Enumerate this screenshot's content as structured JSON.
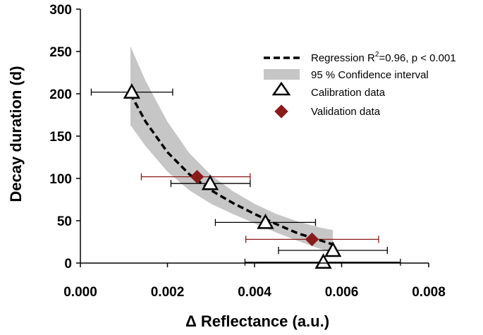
{
  "chart_data": {
    "type": "scatter",
    "xlabel": "Δ Reflectance (a.u.)",
    "ylabel": "Decay duration (d)",
    "xlim": [
      0.0,
      0.008
    ],
    "ylim": [
      0,
      300
    ],
    "x_ticks": [
      "0.000",
      "0.002",
      "0.004",
      "0.006",
      "0.008"
    ],
    "x_tick_values": [
      0.0,
      0.002,
      0.004,
      0.006,
      0.008
    ],
    "y_ticks": [
      "0",
      "50",
      "100",
      "150",
      "200",
      "250",
      "300"
    ],
    "y_tick_values": [
      0,
      50,
      100,
      150,
      200,
      250,
      300
    ],
    "grid": false,
    "legend_position": "top-right",
    "legend": {
      "regression_prefix": "Regression R",
      "regression_superscript": "2",
      "regression_suffix": "=0.96, p < 0.001",
      "confidence": "95 % Confidence interval",
      "calibration": "Calibration data",
      "validation": "Validation data"
    },
    "regression_curve": {
      "x": [
        0.00115,
        0.0015,
        0.002,
        0.0025,
        0.003,
        0.0035,
        0.004,
        0.0045,
        0.005,
        0.0055,
        0.0058
      ],
      "y": [
        200,
        167,
        131,
        105,
        86,
        71,
        58,
        46,
        35,
        27,
        22
      ]
    },
    "confidence_interval": {
      "x": [
        0.00115,
        0.0015,
        0.002,
        0.0025,
        0.003,
        0.0035,
        0.004,
        0.0045,
        0.005,
        0.0055,
        0.0058
      ],
      "upper": [
        256,
        215,
        167,
        130,
        104,
        85,
        70,
        58,
        49,
        42,
        39
      ],
      "lower": [
        163,
        138,
        108,
        86,
        70,
        58,
        47,
        36,
        26,
        17,
        12
      ]
    },
    "series": [
      {
        "name": "Calibration data",
        "marker": "triangle",
        "color": "#ffffff",
        "errorbar_color": "#000000",
        "x": [
          0.00118,
          0.00298,
          0.00425,
          0.0058,
          0.00558
        ],
        "y": [
          202,
          94,
          48,
          15,
          1
        ],
        "x_err_low": [
          0.00025,
          0.00208,
          0.0031,
          0.00455,
          0.00378
        ],
        "x_err_high": [
          0.00212,
          0.0039,
          0.0054,
          0.00705,
          0.00735
        ]
      },
      {
        "name": "Validation data",
        "marker": "diamond",
        "color": "#8B1A1A",
        "errorbar_color": "#8B1A1A",
        "x": [
          0.00268,
          0.00532
        ],
        "y": [
          102,
          28
        ],
        "x_err_low": [
          0.0014,
          0.0038
        ],
        "x_err_high": [
          0.0039,
          0.00685
        ]
      }
    ]
  }
}
